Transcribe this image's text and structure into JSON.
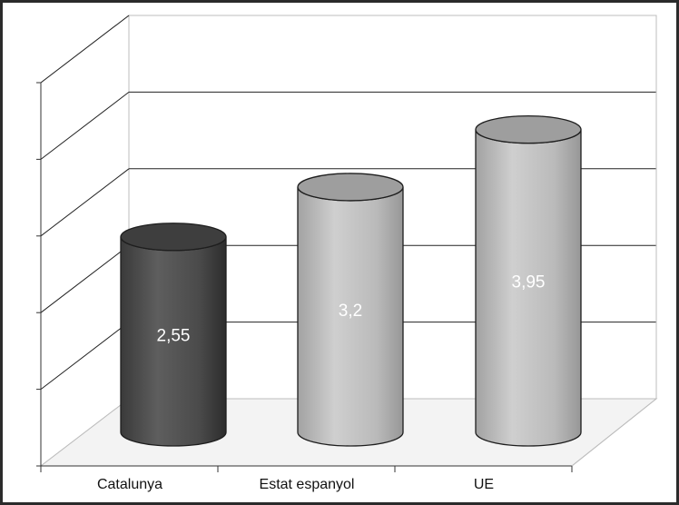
{
  "chart_data": {
    "type": "bar",
    "style": "3d-cylinder",
    "categories": [
      "Catalunya",
      "Estat espanyol",
      "UE"
    ],
    "values": [
      2.55,
      3.2,
      3.95
    ],
    "value_labels": [
      "2,55",
      "3,2",
      "3,95"
    ],
    "title": "",
    "xlabel": "",
    "ylabel": "",
    "ylim": [
      0,
      5
    ],
    "y_tick_labels_shown": false,
    "grid": true,
    "legend": "none",
    "colors": [
      "#4a4a4a",
      "#b9b9b9",
      "#b9b9b9"
    ]
  }
}
